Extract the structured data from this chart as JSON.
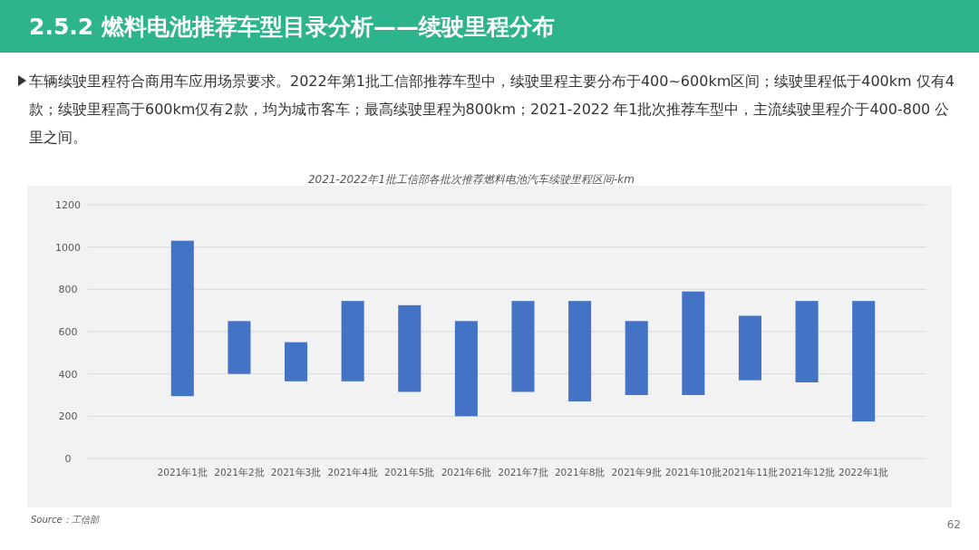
{
  "chart_data": {
    "type": "bar",
    "title": "2.5.2 燃料电池推荐车型目录分析——续驶里程分布",
    "subtitle": "2021-2022年1批工信部各批次推荐燃料电池汽车续驶里程区间-km",
    "categories": [
      "2021年1批",
      "2021年2批",
      "2021年3批",
      "2021年4批",
      "2021年5批",
      "2021年6批",
      "2021年7批",
      "2021年8批",
      "2021年9批",
      "2021年10批",
      "2021年11批",
      "2021年12批",
      "2022年1批"
    ],
    "base": [
      295,
      400,
      365,
      365,
      315,
      200,
      315,
      270,
      300,
      300,
      370,
      360,
      175
    ],
    "values": [
      735,
      250,
      185,
      380,
      410,
      450,
      430,
      475,
      350,
      490,
      305,
      385,
      570
    ],
    "color": "#4472c4",
    "ylim": [
      0,
      1200
    ],
    "yticks": [
      0,
      200,
      400,
      600,
      800,
      1000,
      1200
    ],
    "grid": "y",
    "annotations": [
      "车辆续驶里程符合商用车应用场景要求。2022年第1批工信部推荐车型中，续驶里程主要分布于400~600km区间；续驶里程低于400km 仅有4款；续驶里程高于600km仅有2款，均为城市客车；最高续驶里程为800km；2021-2022 年1批次推荐车型中，主流续驶里程介于400-800 公里之间。",
      "Source：工信部",
      "62"
    ]
  }
}
